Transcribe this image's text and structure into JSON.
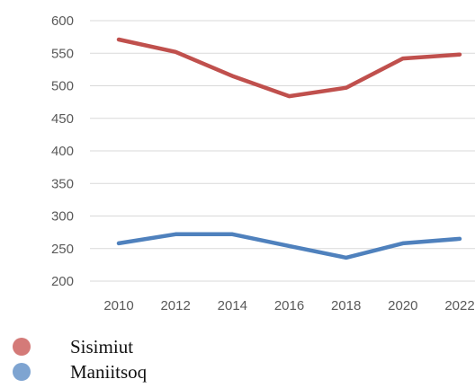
{
  "chart_data": {
    "type": "line",
    "x": [
      2010,
      2012,
      2014,
      2016,
      2018,
      2020,
      2022
    ],
    "series": [
      {
        "name": "Sisimiut",
        "color": "#c0504d",
        "values": [
          571,
          552,
          515,
          484,
          497,
          542,
          548
        ]
      },
      {
        "name": "Maniitsoq",
        "color": "#4f81bd",
        "values": [
          258,
          272,
          272,
          254,
          236,
          258,
          265
        ]
      }
    ],
    "ylim": [
      200,
      600
    ],
    "yticks": [
      200,
      250,
      300,
      350,
      400,
      450,
      500,
      550,
      600
    ],
    "xticks": [
      "2010",
      "2012",
      "2014",
      "2016",
      "2018",
      "2020",
      "2022"
    ],
    "grid": true,
    "legend_position": "bottom-left"
  }
}
